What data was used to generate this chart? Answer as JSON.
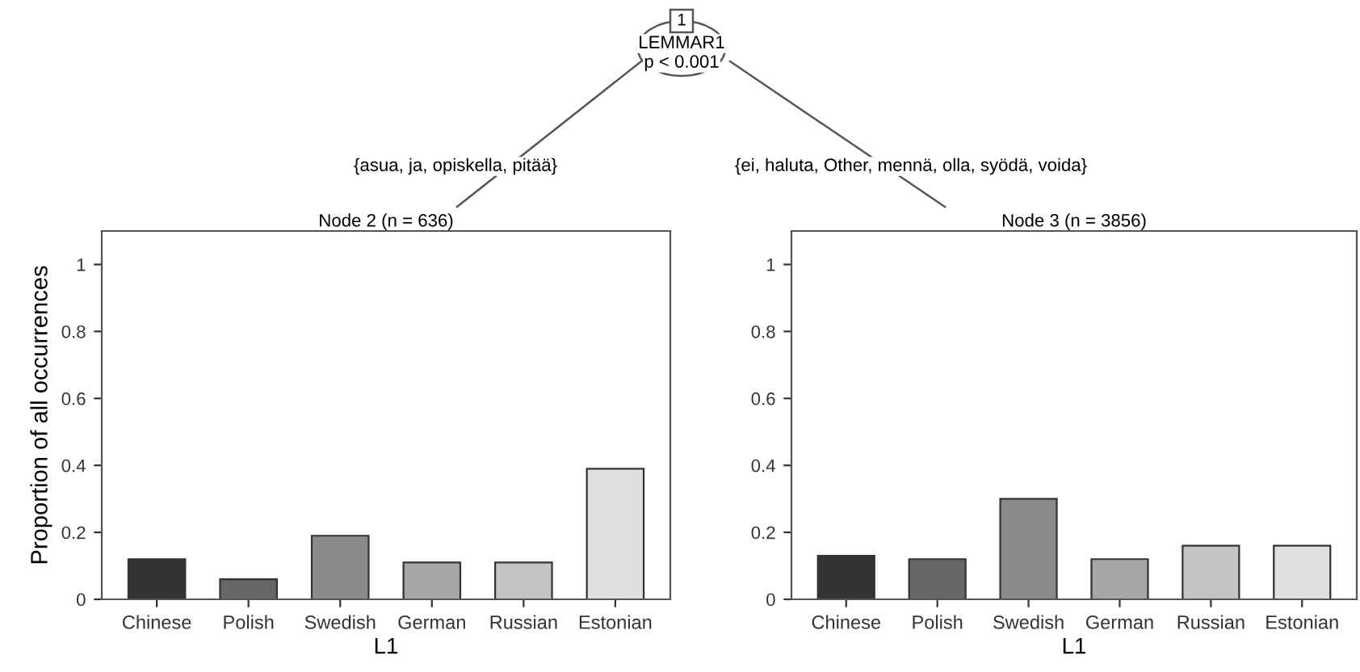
{
  "chart_data": [
    {
      "type": "bar",
      "title": "Node 2 (n = 636)",
      "xlabel": "L1",
      "ylabel": "Proportion of all occurrences",
      "categories": [
        "Chinese",
        "Polish",
        "Swedish",
        "German",
        "Russian",
        "Estonian"
      ],
      "values": [
        0.12,
        0.06,
        0.19,
        0.11,
        0.11,
        0.39
      ],
      "colors": [
        "#333333",
        "#666666",
        "#8a8a8a",
        "#a6a6a6",
        "#c4c4c4",
        "#e0e0e0"
      ],
      "ylim": [
        0,
        1.1
      ],
      "yticks": [
        0,
        0.2,
        0.4,
        0.6,
        0.8,
        1
      ],
      "grid": false,
      "annotations": [
        "1",
        "LEMMAR1",
        "p < 0.001",
        "{asua, ja, opiskella, pitää}"
      ]
    },
    {
      "type": "bar",
      "title": "Node 3 (n = 3856)",
      "xlabel": "L1",
      "categories": [
        "Chinese",
        "Polish",
        "Swedish",
        "German",
        "Russian",
        "Estonian"
      ],
      "values": [
        0.13,
        0.12,
        0.3,
        0.12,
        0.16,
        0.16
      ],
      "colors": [
        "#333333",
        "#666666",
        "#8a8a8a",
        "#a6a6a6",
        "#c4c4c4",
        "#e0e0e0"
      ],
      "ylim": [
        0,
        1.1
      ],
      "yticks": [
        0,
        0.2,
        0.4,
        0.6,
        0.8,
        1
      ],
      "grid": false,
      "annotations": [
        "{ei, haluta, Other, mennä, olla, syödä, voida}"
      ]
    }
  ]
}
